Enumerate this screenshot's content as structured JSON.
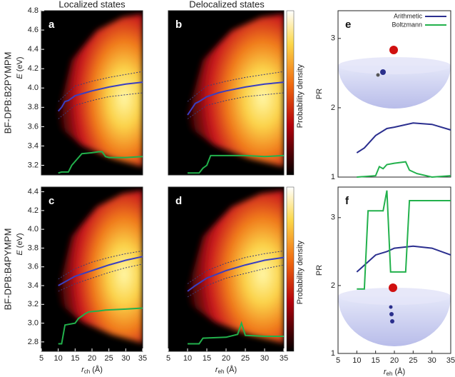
{
  "column_titles": [
    "Localized states",
    "Delocalized states"
  ],
  "row_labels": [
    "BF-DPB:B2PYMPM",
    "BF-DPB:B4PYMPM"
  ],
  "chart_data": [
    {
      "type": "line",
      "label": "a",
      "xlim": [
        5,
        35
      ],
      "ylim": [
        3.1,
        4.8
      ],
      "yticks": [
        3.2,
        3.4,
        3.6,
        3.8,
        {
          "value": 4,
          "label": "4.0"
        },
        4.2,
        4.4,
        4.6,
        4.8
      ],
      "ylabel": {
        "symbol": "E",
        "unit": "(eV)"
      },
      "series": [
        {
          "color": "#3a3fc1",
          "x": [
            10,
            11,
            12,
            13,
            15,
            18,
            20,
            25,
            30,
            35
          ],
          "values": [
            3.76,
            3.8,
            3.86,
            3.87,
            3.92,
            3.95,
            3.97,
            4.01,
            4.04,
            4.06
          ]
        },
        {
          "color": "#3c3c78",
          "dash": true,
          "x": [
            10,
            15,
            20,
            25,
            30,
            35
          ],
          "values": [
            3.86,
            4.02,
            4.07,
            4.11,
            4.14,
            4.17
          ]
        },
        {
          "color": "#3c3c78",
          "dash": true,
          "x": [
            10,
            15,
            20,
            25,
            30,
            35
          ],
          "values": [
            3.68,
            3.82,
            3.87,
            3.91,
            3.93,
            3.95
          ]
        },
        {
          "color": "#22b14c",
          "x": [
            10,
            11,
            13,
            14,
            17,
            20,
            22,
            23,
            24,
            25,
            30,
            35
          ],
          "values": [
            3.12,
            3.13,
            3.13,
            3.2,
            3.32,
            3.33,
            3.34,
            3.34,
            3.29,
            3.28,
            3.28,
            3.29
          ]
        }
      ]
    },
    {
      "type": "line",
      "label": "b",
      "xlim": [
        5,
        35
      ],
      "ylim": [
        3.1,
        4.8
      ],
      "colorbar_label": "Probability density",
      "series": [
        {
          "color": "#3a3fc1",
          "x": [
            10,
            11,
            12,
            13,
            15,
            18,
            20,
            25,
            30,
            35
          ],
          "values": [
            3.72,
            3.78,
            3.84,
            3.86,
            3.91,
            3.95,
            3.97,
            4.01,
            4.04,
            4.06
          ]
        },
        {
          "color": "#3c3c78",
          "dash": true,
          "x": [
            10,
            15,
            20,
            25,
            30,
            35
          ],
          "values": [
            3.86,
            4.02,
            4.07,
            4.11,
            4.14,
            4.17
          ]
        },
        {
          "color": "#3c3c78",
          "dash": true,
          "x": [
            10,
            15,
            20,
            25,
            30,
            35
          ],
          "values": [
            3.68,
            3.82,
            3.87,
            3.91,
            3.93,
            3.95
          ]
        },
        {
          "color": "#22b14c",
          "x": [
            10,
            13,
            14,
            15,
            16,
            20,
            25,
            30,
            35
          ],
          "values": [
            3.12,
            3.12,
            3.17,
            3.2,
            3.3,
            3.3,
            3.3,
            3.29,
            3.3
          ]
        }
      ]
    },
    {
      "type": "line",
      "label": "c",
      "xlim": [
        5,
        35
      ],
      "ylim": [
        2.7,
        4.45
      ],
      "xticks": [
        5,
        10,
        15,
        20,
        25,
        30,
        35
      ],
      "yticks": [
        2.8,
        {
          "value": 3,
          "label": "3.0"
        },
        3.2,
        3.4,
        3.6,
        3.8,
        {
          "value": 4,
          "label": "4.0"
        },
        4.2,
        4.4
      ],
      "ylabel": {
        "symbol": "E",
        "unit": "(eV)"
      },
      "xlabel": {
        "symbol": "r",
        "subscript": "ch",
        "unit": "(Å)"
      },
      "series": [
        {
          "color": "#3a3fc1",
          "x": [
            10,
            12,
            15,
            20,
            25,
            30,
            35
          ],
          "values": [
            3.4,
            3.44,
            3.5,
            3.56,
            3.62,
            3.67,
            3.71
          ]
        },
        {
          "color": "#3c3c78",
          "dash": true,
          "x": [
            10,
            15,
            20,
            25,
            30,
            35
          ],
          "values": [
            3.47,
            3.58,
            3.65,
            3.7,
            3.74,
            3.77
          ]
        },
        {
          "color": "#3c3c78",
          "dash": true,
          "x": [
            10,
            15,
            20,
            25,
            30,
            35
          ],
          "values": [
            3.34,
            3.42,
            3.48,
            3.54,
            3.59,
            3.63
          ]
        },
        {
          "color": "#22b14c",
          "x": [
            10,
            11,
            12,
            15,
            16,
            18,
            19,
            22,
            24,
            30,
            35
          ],
          "values": [
            2.78,
            2.78,
            2.98,
            3.0,
            3.05,
            3.1,
            3.12,
            3.13,
            3.14,
            3.15,
            3.16
          ]
        }
      ]
    },
    {
      "type": "line",
      "label": "d",
      "xlim": [
        5,
        35
      ],
      "ylim": [
        2.7,
        4.45
      ],
      "colorbar_label": "Probability density",
      "xticks": [
        5,
        10,
        15,
        20,
        25,
        30,
        35
      ],
      "xlabel": {
        "symbol": "r",
        "subscript": "eh",
        "unit": "(Å)"
      },
      "series": [
        {
          "color": "#3a3fc1",
          "x": [
            10,
            12,
            15,
            20,
            25,
            30,
            35
          ],
          "values": [
            3.34,
            3.4,
            3.48,
            3.56,
            3.62,
            3.67,
            3.7
          ]
        },
        {
          "color": "#3c3c78",
          "dash": true,
          "x": [
            10,
            15,
            20,
            25,
            30,
            35
          ],
          "values": [
            3.42,
            3.56,
            3.64,
            3.7,
            3.74,
            3.77
          ]
        },
        {
          "color": "#3c3c78",
          "dash": true,
          "x": [
            10,
            15,
            20,
            25,
            30,
            35
          ],
          "values": [
            3.28,
            3.4,
            3.48,
            3.53,
            3.58,
            3.62
          ]
        },
        {
          "color": "#22b14c",
          "x": [
            10,
            13,
            14,
            20,
            23,
            24,
            25,
            30,
            35
          ],
          "values": [
            2.78,
            2.78,
            2.84,
            2.85,
            2.88,
            3.0,
            2.87,
            2.86,
            2.86
          ]
        }
      ]
    },
    {
      "type": "line",
      "label": "e",
      "xlim": [
        5,
        35
      ],
      "ylim": [
        1,
        3.4
      ],
      "yticks": [
        1,
        2,
        3
      ],
      "ylabel": "PR",
      "legend": "top-right",
      "series": [
        {
          "name": "Arithmetic",
          "color": "#2b2f8f",
          "x": [
            10,
            12,
            15,
            18,
            20,
            25,
            30,
            35
          ],
          "values": [
            1.35,
            1.42,
            1.6,
            1.7,
            1.72,
            1.78,
            1.76,
            1.68
          ]
        },
        {
          "name": "Boltzmann",
          "color": "#22b14c",
          "x": [
            10,
            15,
            16,
            17,
            18,
            20,
            23,
            24,
            26,
            30,
            35
          ],
          "values": [
            1.0,
            1.02,
            1.15,
            1.12,
            1.18,
            1.2,
            1.22,
            1.1,
            1.05,
            1.0,
            1.02
          ]
        }
      ]
    },
    {
      "type": "line",
      "label": "f",
      "xlim": [
        5,
        35
      ],
      "ylim": [
        1,
        3.45
      ],
      "yticks": [
        1,
        2,
        3
      ],
      "ylabel": "PR",
      "xticks": [
        5,
        10,
        15,
        20,
        25,
        30,
        35
      ],
      "xlabel": {
        "symbol": "r",
        "subscript": "eh",
        "unit": "(Å)"
      },
      "series": [
        {
          "color": "#2b2f8f",
          "x": [
            10,
            12,
            15,
            18,
            20,
            25,
            30,
            35
          ],
          "values": [
            2.2,
            2.3,
            2.45,
            2.5,
            2.55,
            2.58,
            2.55,
            2.45
          ]
        },
        {
          "color": "#22b14c",
          "x": [
            10,
            12,
            13,
            17,
            18,
            19,
            23,
            24,
            25,
            35
          ],
          "values": [
            1.95,
            1.95,
            3.1,
            3.1,
            3.4,
            2.2,
            2.2,
            3.25,
            3.25,
            3.25
          ]
        }
      ]
    }
  ]
}
